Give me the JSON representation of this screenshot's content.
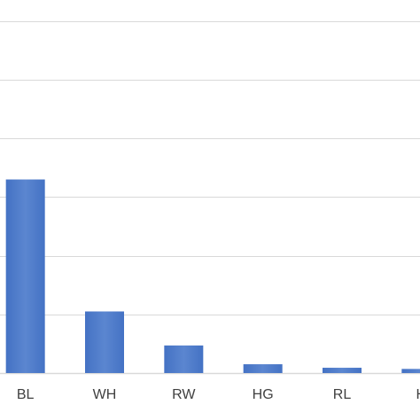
{
  "chart_data": {
    "type": "bar",
    "categories": [
      "BL",
      "WH",
      "RW",
      "HG",
      "RL",
      "H"
    ],
    "values": [
      3.3,
      1.05,
      0.47,
      0.15,
      0.09,
      0.07
    ],
    "title": "",
    "xlabel": "",
    "ylabel": "",
    "ylim": [
      0,
      6.5
    ],
    "y_grid_step": 1,
    "grid": true,
    "legend": "none",
    "colors": {
      "bar": "#4472C4",
      "bar_light": "#5B86D0",
      "grid": "#D9D9D9"
    }
  }
}
